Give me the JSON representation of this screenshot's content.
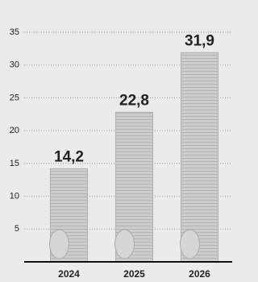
{
  "chart_data": {
    "type": "bar",
    "categories": [
      "2024",
      "2025",
      "2026"
    ],
    "values": [
      14.2,
      22.8,
      31.9
    ],
    "value_labels": [
      "14,2",
      "22,8",
      "31,9"
    ],
    "color": "#c9c9c9",
    "ylim": [
      0,
      35
    ],
    "yticks": [
      5,
      10,
      15,
      20,
      25,
      30,
      35
    ],
    "grid": true
  }
}
